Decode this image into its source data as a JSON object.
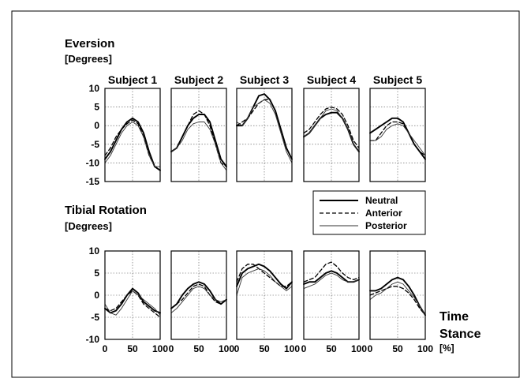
{
  "figure": {
    "top_title": "Eversion",
    "top_unit": "[Degrees]",
    "bottom_title": "Tibial Rotation",
    "bottom_unit": "[Degrees]",
    "x_title_line1": "Time",
    "x_title_line2": "Stance",
    "x_unit": "[%]"
  },
  "chart_data": [
    {
      "type": "line",
      "title": "Eversion",
      "ylabel": "[Degrees]",
      "xlabel": "Time Stance [%]",
      "subjects": [
        "Subject 1",
        "Subject 2",
        "Subject 3",
        "Subject 4",
        "Subject 5"
      ],
      "x": [
        0,
        10,
        20,
        30,
        40,
        50,
        60,
        70,
        80,
        90,
        100
      ],
      "xlim": [
        0,
        100
      ],
      "ylim": [
        -15,
        10
      ],
      "yticks": [
        10,
        5,
        0,
        -5,
        -10,
        -15
      ],
      "xticks": [
        0,
        50,
        100
      ],
      "grid": true,
      "legend_position": "right",
      "series_names": [
        "Neutral",
        "Anterior",
        "Posterior"
      ],
      "panels": [
        {
          "subject": "Subject 1",
          "series": [
            {
              "name": "Neutral",
              "values": [
                -9,
                -7,
                -4,
                -1,
                1,
                2,
                1,
                -2,
                -7,
                -11,
                -12
              ]
            },
            {
              "name": "Anterior",
              "values": [
                -8,
                -6,
                -3,
                -1,
                0.5,
                1.5,
                0.5,
                -3,
                -8,
                -11,
                -12
              ]
            },
            {
              "name": "Posterior",
              "values": [
                -10,
                -8,
                -5,
                -2,
                0,
                1,
                0,
                -3,
                -8,
                -11,
                -11
              ]
            }
          ]
        },
        {
          "subject": "Subject 2",
          "series": [
            {
              "name": "Neutral",
              "values": [
                -7,
                -6,
                -3,
                0,
                2,
                3,
                3,
                1,
                -4,
                -9,
                -11
              ]
            },
            {
              "name": "Anterior",
              "values": [
                -7,
                -6,
                -3,
                0,
                3,
                4,
                3,
                0,
                -5,
                -10,
                -11
              ]
            },
            {
              "name": "Posterior",
              "values": [
                -7,
                -6,
                -4,
                -1,
                0.5,
                1,
                1,
                -1,
                -5,
                -10,
                -12
              ]
            }
          ]
        },
        {
          "subject": "Subject 3",
          "series": [
            {
              "name": "Neutral",
              "values": [
                0,
                0,
                2,
                5,
                8,
                8.5,
                7,
                4,
                -1,
                -6,
                -9
              ]
            },
            {
              "name": "Anterior",
              "values": [
                0,
                1,
                2,
                4,
                6,
                7,
                7,
                4,
                -1,
                -6,
                -9
              ]
            },
            {
              "name": "Posterior",
              "values": [
                1,
                0,
                2,
                5,
                6,
                7,
                6,
                3,
                -2,
                -7,
                -10
              ]
            }
          ]
        },
        {
          "subject": "Subject 4",
          "series": [
            {
              "name": "Neutral",
              "values": [
                -3,
                -2,
                0,
                2,
                3,
                3.5,
                3.5,
                2,
                -1,
                -5,
                -7
              ]
            },
            {
              "name": "Anterior",
              "values": [
                -2,
                -1,
                1,
                3,
                4.5,
                5,
                4.5,
                3,
                0,
                -4,
                -6
              ]
            },
            {
              "name": "Posterior",
              "values": [
                -3,
                -2,
                0,
                2,
                4,
                4.5,
                4,
                2,
                -1,
                -5,
                -7
              ]
            }
          ]
        },
        {
          "subject": "Subject 5",
          "series": [
            {
              "name": "Neutral",
              "values": [
                -2,
                -1,
                0,
                1,
                2,
                2,
                1,
                -2,
                -5,
                -7,
                -9
              ]
            },
            {
              "name": "Anterior",
              "values": [
                -4,
                -4,
                -2,
                0,
                1,
                1,
                0.5,
                -2,
                -5,
                -7,
                -8
              ]
            },
            {
              "name": "Posterior",
              "values": [
                -4,
                -4,
                -3,
                -1,
                0,
                0.5,
                0,
                -2,
                -4,
                -6,
                -8
              ]
            }
          ]
        }
      ]
    },
    {
      "type": "line",
      "title": "Tibial Rotation",
      "ylabel": "[Degrees]",
      "xlabel": "Time Stance [%]",
      "subjects": [
        "Subject 1",
        "Subject 2",
        "Subject 3",
        "Subject 4",
        "Subject 5"
      ],
      "x": [
        0,
        10,
        20,
        30,
        40,
        50,
        60,
        70,
        80,
        90,
        100
      ],
      "xlim": [
        0,
        100
      ],
      "ylim": [
        -10,
        10
      ],
      "yticks": [
        10,
        5,
        0,
        -5,
        -10
      ],
      "xticks": [
        0,
        50,
        100
      ],
      "xticklabels": [
        "0",
        "50",
        "100"
      ],
      "grid": true,
      "panels": [
        {
          "subject": "Subject 1",
          "series": [
            {
              "name": "Neutral",
              "values": [
                -3,
                -4,
                -3.5,
                -2,
                0,
                1.5,
                0.5,
                -1.5,
                -2.5,
                -3.5,
                -4
              ]
            },
            {
              "name": "Anterior",
              "values": [
                -3,
                -3.5,
                -3,
                -1.5,
                0,
                1,
                0,
                -2,
                -3,
                -4,
                -5
              ]
            },
            {
              "name": "Posterior",
              "values": [
                -2,
                -4,
                -4.5,
                -3,
                -1,
                1,
                0,
                -1,
                -2,
                -3,
                -4.5
              ]
            }
          ]
        },
        {
          "subject": "Subject 2",
          "series": [
            {
              "name": "Neutral",
              "values": [
                -3,
                -2,
                0,
                1.5,
                2.5,
                3,
                2.5,
                1,
                -1,
                -2,
                -1
              ]
            },
            {
              "name": "Anterior",
              "values": [
                -3,
                -2,
                -1,
                0.5,
                2,
                2.5,
                2,
                0,
                -1.5,
                -2,
                -1
              ]
            },
            {
              "name": "Posterior",
              "values": [
                -4,
                -3,
                -1.5,
                0,
                1.5,
                2,
                1.5,
                0,
                -1,
                -1.5,
                -1
              ]
            }
          ]
        },
        {
          "subject": "Subject 3",
          "series": [
            {
              "name": "Neutral",
              "values": [
                2,
                5,
                6,
                6.5,
                7,
                6.5,
                5.5,
                4,
                2.5,
                1.5,
                3
              ]
            },
            {
              "name": "Anterior",
              "values": [
                3,
                6,
                7,
                7,
                6,
                5,
                4,
                3,
                2,
                2,
                3
              ]
            },
            {
              "name": "Posterior",
              "values": [
                0,
                4,
                5,
                5.5,
                6,
                5.5,
                4.5,
                3,
                2,
                1,
                2
              ]
            }
          ]
        },
        {
          "subject": "Subject 4",
          "series": [
            {
              "name": "Neutral",
              "values": [
                2.5,
                3,
                3,
                4,
                5,
                5.5,
                5,
                4,
                3,
                3,
                3.5
              ]
            },
            {
              "name": "Anterior",
              "values": [
                3,
                3.5,
                4,
                5.5,
                7,
                7.5,
                6.5,
                5,
                4,
                3.5,
                4
              ]
            },
            {
              "name": "Posterior",
              "values": [
                1.5,
                2,
                2.5,
                3.5,
                4.5,
                5,
                4.5,
                3.5,
                3,
                3,
                3.5
              ]
            }
          ]
        },
        {
          "subject": "Subject 5",
          "series": [
            {
              "name": "Neutral",
              "values": [
                1,
                1,
                1.5,
                2.5,
                3.5,
                4,
                3.5,
                2,
                0,
                -2.5,
                -4.5
              ]
            },
            {
              "name": "Anterior",
              "values": [
                0,
                0.5,
                1,
                1.5,
                2,
                2,
                1.5,
                0.5,
                -1,
                -3,
                -4.5
              ]
            },
            {
              "name": "Posterior",
              "values": [
                -1,
                0,
                0.5,
                1.5,
                2.5,
                3,
                2.5,
                1,
                -0.5,
                -2.5,
                -4.5
              ]
            }
          ]
        }
      ]
    }
  ]
}
